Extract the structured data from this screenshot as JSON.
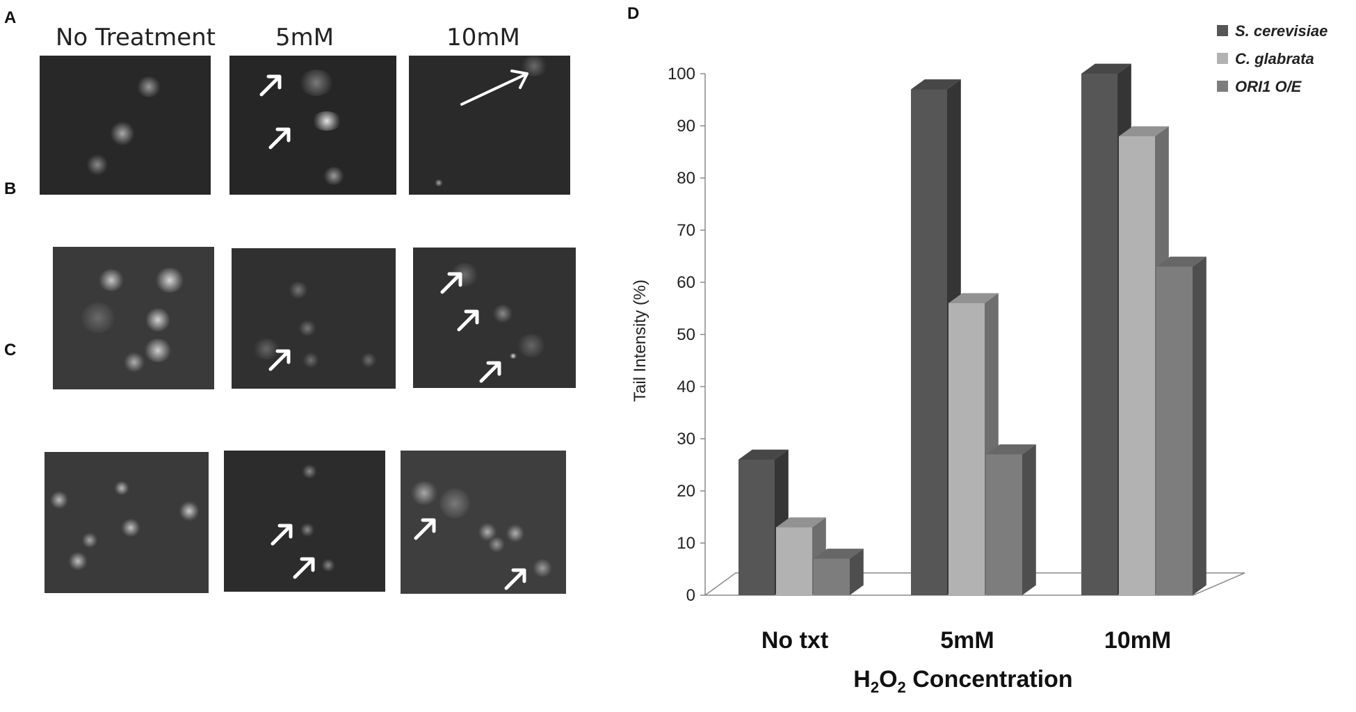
{
  "panels": {
    "a": "A",
    "b": "B",
    "c": "C",
    "d": "D"
  },
  "column_headers": [
    "No Treatment",
    "5mM",
    "10mM"
  ],
  "chart_data": {
    "type": "bar",
    "categories": [
      "No txt",
      "5mM",
      "10mM"
    ],
    "series": [
      {
        "name": "S. cerevisiae",
        "values": [
          26,
          97,
          100
        ],
        "color": "#565656"
      },
      {
        "name": "C. glabrata",
        "values": [
          13,
          56,
          88
        ],
        "color": "#b2b2b2"
      },
      {
        "name": "ORI1 O/E",
        "values": [
          7,
          27,
          63
        ],
        "color": "#7d7d7d"
      }
    ],
    "ylabel": "Tail Intensity (%)",
    "xlabel_main": "H",
    "xlabel_sub1": "2",
    "xlabel_mid": "O",
    "xlabel_sub2": "2",
    "xlabel_tail": " Concentration",
    "ylim": [
      0,
      100
    ],
    "yticks": [
      "0",
      "10",
      "20",
      "30",
      "40",
      "50",
      "60",
      "70",
      "80",
      "90",
      "100"
    ],
    "legend_position": "top-right",
    "grid": false
  }
}
